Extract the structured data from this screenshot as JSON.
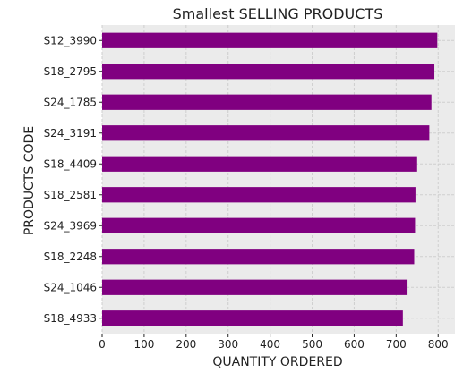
{
  "colors": {
    "bar": "#800080",
    "plot_background": "#ebebeb",
    "grid": "#cfcfcf",
    "text": "#222222"
  },
  "chart_data": {
    "type": "bar",
    "orientation": "horizontal",
    "title": "Smallest SELLING PRODUCTS",
    "xlabel": "QUANTITY ORDERED",
    "ylabel": "PRODUCTS CODE",
    "categories": [
      "S12_3990",
      "S18_2795",
      "S24_1785",
      "S24_3191",
      "S18_4409",
      "S18_2581",
      "S24_3969",
      "S18_2248",
      "S24_1046",
      "S18_4933"
    ],
    "values": [
      798,
      791,
      784,
      779,
      750,
      746,
      745,
      743,
      725,
      716
    ],
    "xlim": [
      0,
      840
    ],
    "xticks": [
      0,
      100,
      200,
      300,
      400,
      500,
      600,
      700,
      800
    ],
    "grid": true
  }
}
